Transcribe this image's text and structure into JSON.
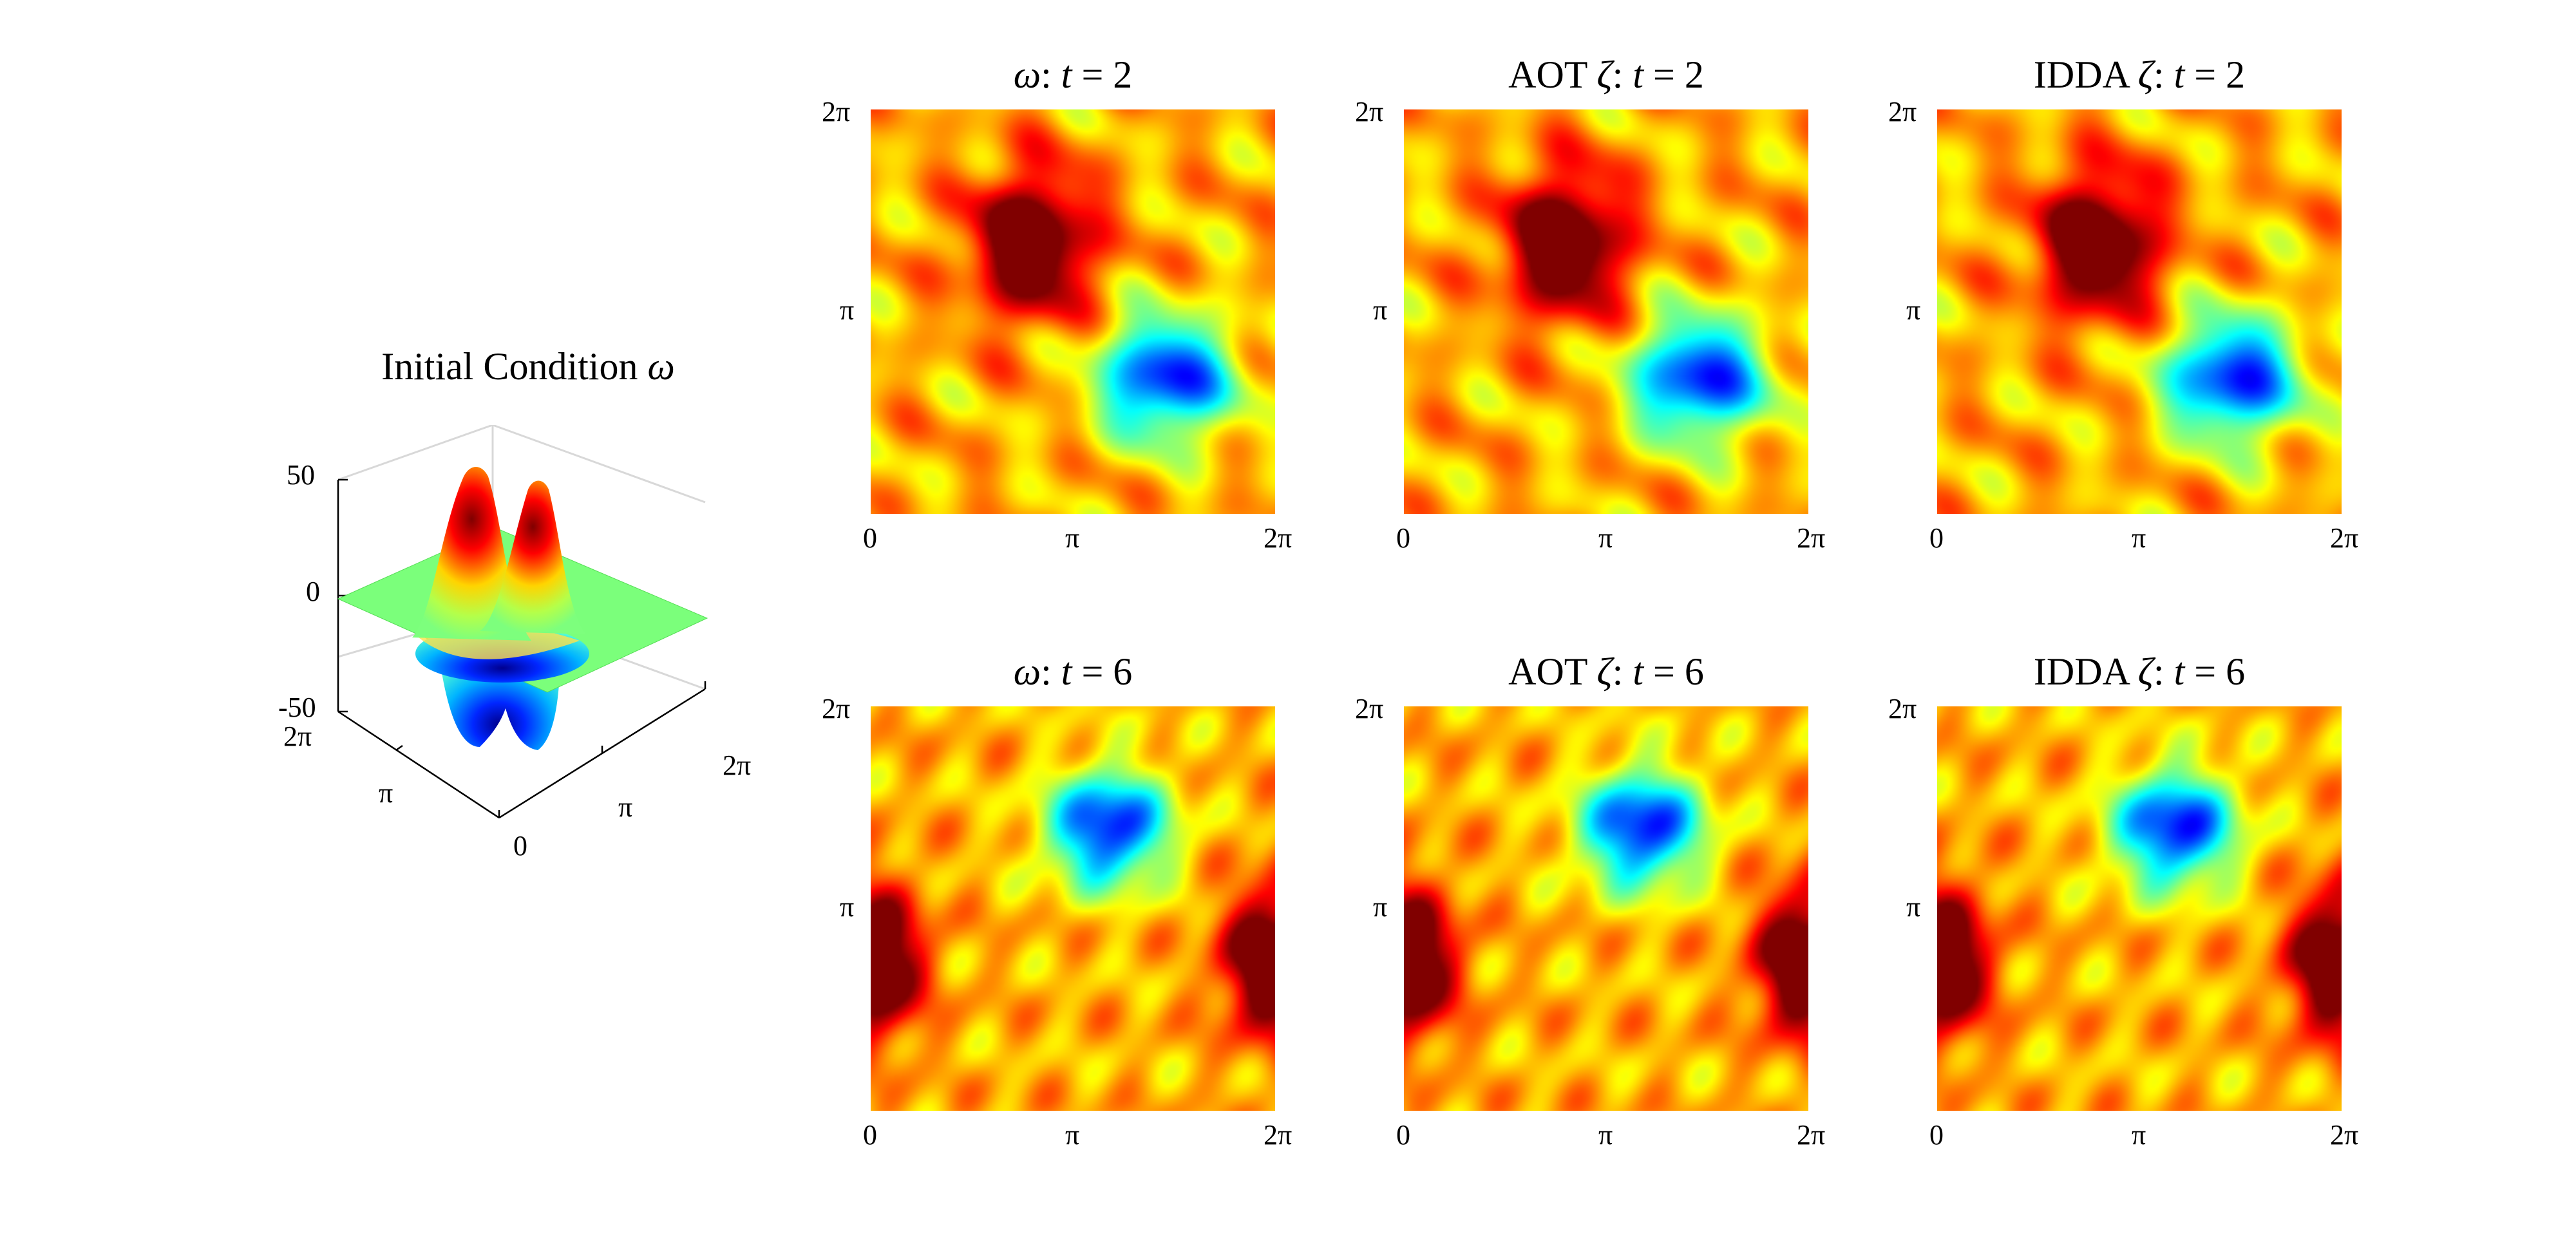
{
  "figure": {
    "initial": {
      "title_text": "Initial Condition ",
      "title_symbol": "ω",
      "z_ticks": [
        "50",
        "0",
        "-50"
      ],
      "y_ticks": [
        "2π",
        "π"
      ],
      "x_ticks": [
        "0",
        "π",
        "2π"
      ]
    },
    "panels": [
      {
        "prefix": "",
        "symbol": "ω",
        "suffix": ": ",
        "tvar": "t",
        "rest": " = 2",
        "time": 2
      },
      {
        "prefix": "AOT ",
        "symbol": "ζ",
        "suffix": ": ",
        "tvar": "t",
        "rest": " = 2",
        "time": 2
      },
      {
        "prefix": "IDDA ",
        "symbol": "ζ",
        "suffix": ": ",
        "tvar": "t",
        "rest": " = 2",
        "time": 2
      },
      {
        "prefix": "",
        "symbol": "ω",
        "suffix": ": ",
        "tvar": "t",
        "rest": " = 6",
        "time": 6
      },
      {
        "prefix": "AOT ",
        "symbol": "ζ",
        "suffix": ": ",
        "tvar": "t",
        "rest": " = 6",
        "time": 6
      },
      {
        "prefix": "IDDA ",
        "symbol": "ζ",
        "suffix": ": ",
        "tvar": "t",
        "rest": " = 6",
        "time": 6
      }
    ],
    "x_ticks": [
      "0",
      "π",
      "2π"
    ],
    "y_ticks": [
      "2π",
      "π"
    ]
  },
  "chart_data": [
    {
      "type": "surface",
      "title": "Initial Condition ω",
      "zlim": [
        -50,
        50
      ],
      "x_range": [
        0,
        6.2832
      ],
      "y_range": [
        0,
        6.2832
      ],
      "z_ticks": [
        50,
        0,
        -50
      ],
      "features": [
        {
          "kind": "peak",
          "x": 2.6,
          "y": 3.7,
          "z": 50
        },
        {
          "kind": "peak",
          "x": 3.7,
          "y": 2.6,
          "z": 45
        },
        {
          "kind": "trough",
          "x": 2.6,
          "y": 2.6,
          "z": -48
        },
        {
          "kind": "trough",
          "x": 3.7,
          "y": 3.7,
          "z": -48
        }
      ],
      "colormap": "jet"
    },
    {
      "type": "heatmap",
      "layout": "2x3",
      "rows": [
        "t = 2",
        "t = 6"
      ],
      "columns": [
        "ω",
        "AOT ζ",
        "IDDA ζ"
      ],
      "x_range": [
        0,
        6.2832
      ],
      "y_range": [
        0,
        6.2832
      ],
      "colormap": "jet",
      "background_level": 0.3,
      "fields": {
        "t=2": {
          "vortices": [
            {
              "sign": "positive",
              "x": 2.5,
              "y": 4.2,
              "rx": 1.05,
              "ry": 1.25,
              "amp": 0.7
            },
            {
              "sign": "negative",
              "x": 4.6,
              "y": 2.1,
              "rx": 1.15,
              "ry": 1.05,
              "amp": -0.85
            }
          ]
        },
        "t=6": {
          "vortices": [
            {
              "sign": "negative",
              "x": 3.7,
              "y": 4.4,
              "rx": 1.05,
              "ry": 1.0,
              "amp": -0.85
            },
            {
              "sign": "positive",
              "x": 0.0,
              "y": 2.3,
              "rx": 0.85,
              "ry": 1.25,
              "amp": 0.75
            },
            {
              "sign": "positive",
              "x": 6.2832,
              "y": 2.3,
              "rx": 0.85,
              "ry": 1.25,
              "amp": 0.75
            }
          ]
        }
      }
    }
  ]
}
